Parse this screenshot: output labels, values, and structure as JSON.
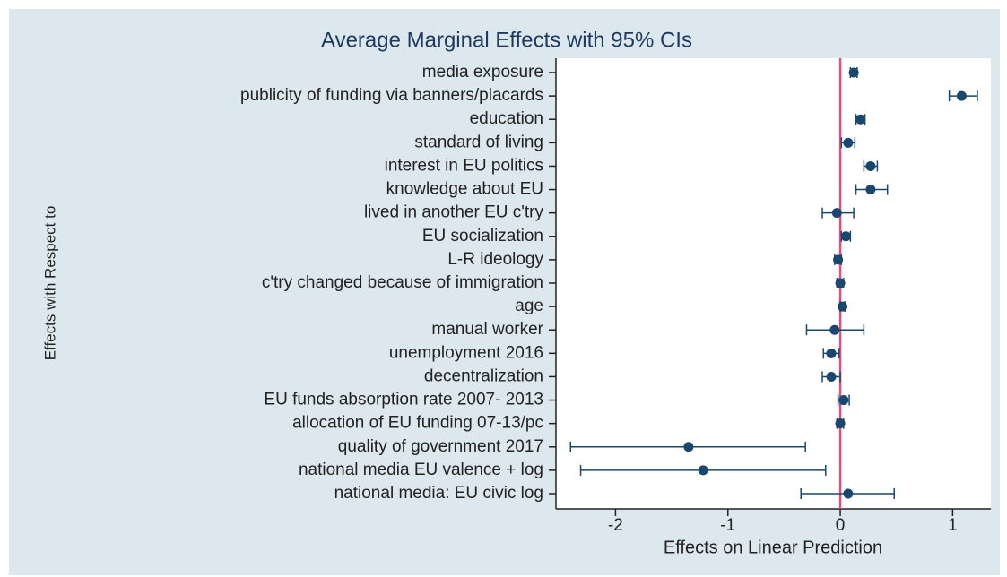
{
  "chart_data": {
    "type": "coefplot",
    "title": "Average Marginal Effects with 95% CIs",
    "x_label": "Effects on Linear Prediction",
    "y_label": "Effects with Respect to",
    "categories": [
      "media exposure",
      "publicity of funding via banners/placards",
      "education",
      "standard of living",
      "interest in EU politics",
      "knowledge about EU",
      "lived in another EU c'try",
      "EU socialization",
      "L-R ideology",
      "c'try changed because of immigration",
      "age",
      "manual worker",
      "unemployment 2016",
      "decentralization",
      "EU funds absorption rate 2007- 2013",
      "allocation of EU funding 07-13/pc",
      "quality of government 2017",
      "national media  EU valence + log",
      "national media: EU civic log"
    ],
    "values": [
      0.12,
      1.08,
      0.18,
      0.07,
      0.27,
      0.27,
      -0.03,
      0.05,
      -0.02,
      0.0,
      0.02,
      -0.05,
      -0.08,
      -0.08,
      0.03,
      0.0,
      -1.35,
      -1.22,
      0.07
    ],
    "ci_low": [
      0.09,
      0.97,
      0.14,
      0.01,
      0.21,
      0.14,
      -0.16,
      0.01,
      -0.05,
      -0.03,
      0.0,
      -0.3,
      -0.15,
      -0.16,
      -0.02,
      -0.03,
      -2.4,
      -2.31,
      -0.35
    ],
    "ci_high": [
      0.15,
      1.22,
      0.22,
      0.13,
      0.33,
      0.42,
      0.12,
      0.09,
      0.01,
      0.03,
      0.04,
      0.21,
      -0.01,
      0.0,
      0.08,
      0.03,
      -0.31,
      -0.13,
      0.48
    ],
    "color": "#1a476f",
    "reference_line": 0,
    "reference_color": "#e0507a",
    "xlim": [
      -2.53,
      1.34
    ],
    "xticks": [
      -2,
      -1,
      0,
      1
    ]
  }
}
